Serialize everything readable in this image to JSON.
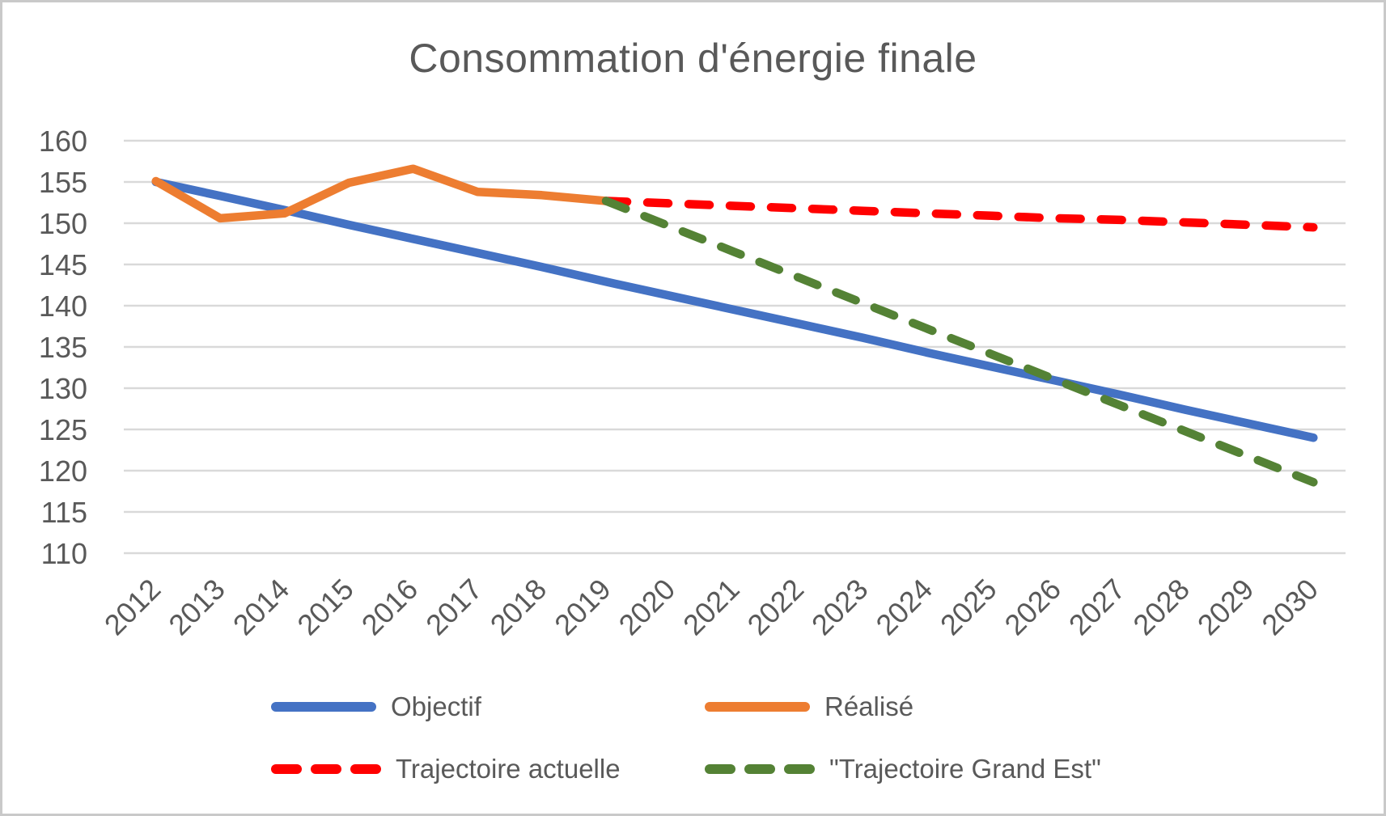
{
  "chart_data": {
    "type": "line",
    "title": "Consommation d'énergie finale",
    "xlabel": "",
    "ylabel": "",
    "categories": [
      "2012",
      "2013",
      "2014",
      "2015",
      "2016",
      "2017",
      "2018",
      "2019",
      "2020",
      "2021",
      "2022",
      "2023",
      "2024",
      "2025",
      "2026",
      "2027",
      "2028",
      "2029",
      "2030"
    ],
    "ylim": [
      110,
      160
    ],
    "yticks": [
      160,
      155,
      150,
      145,
      140,
      135,
      130,
      125,
      120,
      115,
      110
    ],
    "grid": "horizontal",
    "legend_position": "bottom",
    "legend_rows": 2,
    "colors": {
      "gridline": "#d9d9d9",
      "text": "#595959",
      "objectif": "#4472C4",
      "realise": "#ED7D31",
      "trajectoire_actuelle": "#FF0000",
      "trajectoire_grand_est": "#548235"
    },
    "series": [
      {
        "name": "Objectif",
        "color": "#4472C4",
        "dash": false,
        "values": [
          155,
          153.3,
          151.6,
          149.8,
          148.1,
          146.4,
          144.7,
          142.9,
          141.2,
          139.5,
          137.8,
          136.1,
          134.3,
          132.6,
          130.9,
          129.2,
          127.4,
          125.7,
          124
        ]
      },
      {
        "name": "Réalisé",
        "color": "#ED7D31",
        "dash": false,
        "values": [
          155.1,
          150.6,
          151.2,
          154.9,
          156.6,
          153.8,
          153.4,
          152.7,
          null,
          null,
          null,
          null,
          null,
          null,
          null,
          null,
          null,
          null,
          null
        ]
      },
      {
        "name": "Trajectoire actuelle",
        "color": "#FF0000",
        "dash": true,
        "values": [
          null,
          null,
          null,
          null,
          null,
          null,
          null,
          152.7,
          152.4,
          152.1,
          151.8,
          151.5,
          151.2,
          150.9,
          150.6,
          150.4,
          150.1,
          149.8,
          149.5
        ]
      },
      {
        "name": "\"Trajectoire Grand Est\"",
        "color": "#548235",
        "dash": true,
        "values": [
          null,
          null,
          null,
          null,
          null,
          null,
          null,
          152.7,
          149.6,
          146.5,
          143.4,
          140.3,
          137.2,
          134.1,
          131.0,
          127.9,
          124.8,
          121.7,
          118.6
        ]
      }
    ]
  }
}
